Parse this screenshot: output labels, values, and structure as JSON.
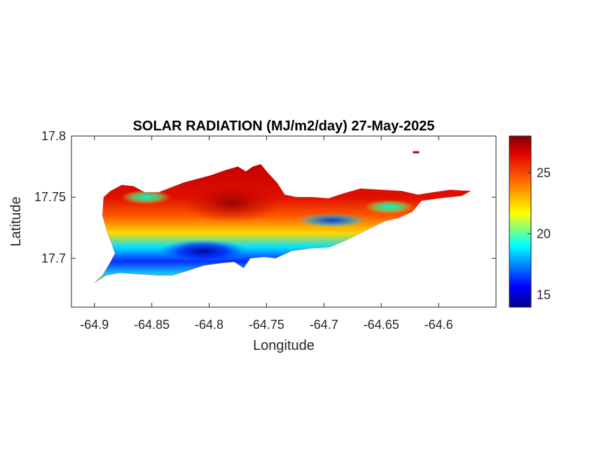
{
  "chart_data": {
    "type": "heatmap",
    "title": "SOLAR RADIATION (MJ/m2/day) 27-May-2025",
    "xlabel": "Longitude",
    "ylabel": "Latitude",
    "xlim": [
      -64.92,
      -64.55
    ],
    "ylim": [
      17.66,
      17.8
    ],
    "xticks": [
      -64.9,
      -64.85,
      -64.8,
      -64.75,
      -64.7,
      -64.65,
      -64.6
    ],
    "xtick_labels": [
      "-64.9",
      "-64.85",
      "-64.8",
      "-64.75",
      "-64.7",
      "-64.65",
      "-64.6"
    ],
    "yticks": [
      17.7,
      17.75,
      17.8
    ],
    "ytick_labels": [
      "17.7",
      "17.75",
      "17.8"
    ],
    "grid": false,
    "colormap": "jet",
    "clim": [
      14,
      28
    ],
    "colorbar_ticks": [
      15,
      20,
      25
    ],
    "colorbar_tick_labels": [
      "15",
      "20",
      "25"
    ],
    "island_outline": [
      [
        -64.9,
        17.68
      ],
      [
        -64.893,
        17.686
      ],
      [
        -64.886,
        17.697
      ],
      [
        -64.882,
        17.704
      ],
      [
        -64.885,
        17.712
      ],
      [
        -64.889,
        17.722
      ],
      [
        -64.893,
        17.735
      ],
      [
        -64.892,
        17.75
      ],
      [
        -64.886,
        17.755
      ],
      [
        -64.876,
        17.76
      ],
      [
        -64.866,
        17.759
      ],
      [
        -64.856,
        17.754
      ],
      [
        -64.844,
        17.754
      ],
      [
        -64.833,
        17.758
      ],
      [
        -64.822,
        17.762
      ],
      [
        -64.81,
        17.765
      ],
      [
        -64.798,
        17.768
      ],
      [
        -64.786,
        17.772
      ],
      [
        -64.775,
        17.775
      ],
      [
        -64.768,
        17.771
      ],
      [
        -64.762,
        17.775
      ],
      [
        -64.755,
        17.777
      ],
      [
        -64.749,
        17.77
      ],
      [
        -64.741,
        17.762
      ],
      [
        -64.734,
        17.752
      ],
      [
        -64.724,
        17.75
      ],
      [
        -64.71,
        17.75
      ],
      [
        -64.696,
        17.749
      ],
      [
        -64.683,
        17.753
      ],
      [
        -64.668,
        17.757
      ],
      [
        -64.65,
        17.756
      ],
      [
        -64.632,
        17.755
      ],
      [
        -64.618,
        17.752
      ],
      [
        -64.605,
        17.754
      ],
      [
        -64.59,
        17.756
      ],
      [
        -64.572,
        17.755
      ],
      [
        -64.58,
        17.751
      ],
      [
        -64.6,
        17.749
      ],
      [
        -64.615,
        17.747
      ],
      [
        -64.623,
        17.738
      ],
      [
        -64.635,
        17.733
      ],
      [
        -64.648,
        17.73
      ],
      [
        -64.665,
        17.722
      ],
      [
        -64.68,
        17.715
      ],
      [
        -64.695,
        17.709
      ],
      [
        -64.712,
        17.708
      ],
      [
        -64.728,
        17.706
      ],
      [
        -64.742,
        17.7
      ],
      [
        -64.752,
        17.701
      ],
      [
        -64.764,
        17.7
      ],
      [
        -64.77,
        17.692
      ],
      [
        -64.778,
        17.697
      ],
      [
        -64.79,
        17.696
      ],
      [
        -64.805,
        17.694
      ],
      [
        -64.818,
        17.69
      ],
      [
        -64.832,
        17.686
      ],
      [
        -64.845,
        17.686
      ],
      [
        -64.862,
        17.687
      ],
      [
        -64.878,
        17.688
      ],
      [
        -64.89,
        17.686
      ]
    ],
    "hot_spots": [
      {
        "lon": -64.855,
        "lat": 17.75,
        "value": 22
      },
      {
        "lon": -64.643,
        "lat": 17.742,
        "value": 20
      },
      {
        "lon": -64.693,
        "lat": 17.731,
        "value": 18
      },
      {
        "lon": -64.805,
        "lat": 17.706,
        "value": 15
      },
      {
        "lon": -64.78,
        "lat": 17.745,
        "value": 27
      }
    ],
    "outlier_pixel": {
      "lon": -64.62,
      "lat": 17.787,
      "value": 27
    }
  }
}
